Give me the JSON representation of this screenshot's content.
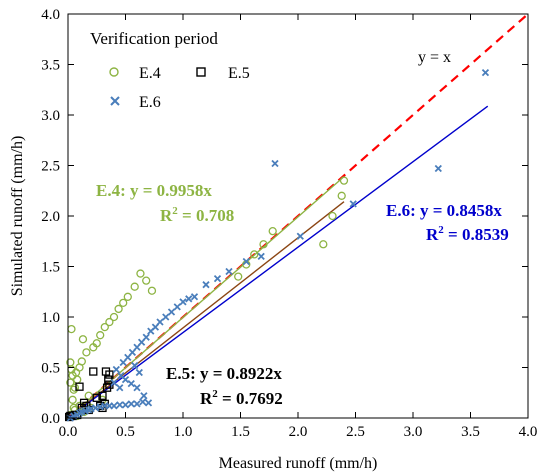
{
  "chart_data": {
    "type": "scatter",
    "title": "Verification period",
    "xlabel": "Measured runoff (mm/h)",
    "ylabel": "Simulated runoff (mm/h)",
    "xlim": [
      0,
      4.0
    ],
    "ylim": [
      0,
      4.0
    ],
    "xticks": [
      "0.0",
      "0.5",
      "1.0",
      "1.5",
      "2.0",
      "2.5",
      "3.0",
      "3.5",
      "4.0"
    ],
    "yticks": [
      "0.0",
      "0.5",
      "1.0",
      "1.5",
      "2.0",
      "2.5",
      "3.0",
      "3.5",
      "4.0"
    ],
    "grid": false,
    "legend_position": "top-left",
    "series": [
      {
        "name": "E.4",
        "marker": "circle",
        "color": "#8db443",
        "points": [
          [
            0.02,
            0.03
          ],
          [
            0.02,
            0.35
          ],
          [
            0.02,
            0.55
          ],
          [
            0.03,
            0.88
          ],
          [
            0.03,
            0.48
          ],
          [
            0.04,
            0.42
          ],
          [
            0.04,
            0.18
          ],
          [
            0.05,
            0.1
          ],
          [
            0.05,
            0.28
          ],
          [
            0.06,
            0.08
          ],
          [
            0.06,
            0.3
          ],
          [
            0.07,
            0.45
          ],
          [
            0.08,
            0.38
          ],
          [
            0.08,
            0.02
          ],
          [
            0.1,
            0.5
          ],
          [
            0.12,
            0.56
          ],
          [
            0.13,
            0.78
          ],
          [
            0.16,
            0.65
          ],
          [
            0.22,
            0.7
          ],
          [
            0.25,
            0.74
          ],
          [
            0.28,
            0.82
          ],
          [
            0.32,
            0.9
          ],
          [
            0.36,
            0.95
          ],
          [
            0.4,
            1.0
          ],
          [
            0.44,
            1.08
          ],
          [
            0.48,
            1.14
          ],
          [
            0.52,
            1.2
          ],
          [
            0.58,
            1.3
          ],
          [
            0.63,
            1.43
          ],
          [
            0.68,
            1.36
          ],
          [
            0.73,
            1.26
          ],
          [
            1.48,
            1.4
          ],
          [
            1.55,
            1.52
          ],
          [
            1.62,
            1.62
          ],
          [
            1.7,
            1.72
          ],
          [
            1.78,
            1.85
          ],
          [
            2.22,
            1.72
          ],
          [
            2.3,
            2.0
          ],
          [
            2.38,
            2.2
          ],
          [
            2.4,
            2.35
          ],
          [
            0.1,
            0.12
          ],
          [
            0.14,
            0.06
          ],
          [
            0.2,
            0.1
          ],
          [
            0.3,
            0.18
          ],
          [
            0.18,
            0.22
          ]
        ]
      },
      {
        "name": "E.5",
        "marker": "square",
        "color": "#000000",
        "points": [
          [
            0.01,
            0.01
          ],
          [
            0.02,
            0.02
          ],
          [
            0.04,
            0.02
          ],
          [
            0.06,
            0.03
          ],
          [
            0.08,
            0.03
          ],
          [
            0.1,
            0.31
          ],
          [
            0.12,
            0.1
          ],
          [
            0.14,
            0.15
          ],
          [
            0.16,
            0.12
          ],
          [
            0.18,
            0.08
          ],
          [
            0.22,
            0.46
          ],
          [
            0.25,
            0.2
          ],
          [
            0.28,
            0.12
          ],
          [
            0.3,
            0.22
          ],
          [
            0.33,
            0.46
          ],
          [
            0.34,
            0.3
          ],
          [
            0.35,
            0.38
          ],
          [
            0.36,
            0.33
          ],
          [
            0.36,
            0.43
          ],
          [
            0.3,
            0.1
          ],
          [
            0.32,
            0.14
          ]
        ]
      },
      {
        "name": "E.6",
        "marker": "x",
        "color": "#4a7ebb",
        "points": [
          [
            0.02,
            0.0
          ],
          [
            0.05,
            0.02
          ],
          [
            0.08,
            0.03
          ],
          [
            0.1,
            0.05
          ],
          [
            0.12,
            0.06
          ],
          [
            0.15,
            0.07
          ],
          [
            0.18,
            0.08
          ],
          [
            0.2,
            0.09
          ],
          [
            0.24,
            0.1
          ],
          [
            0.28,
            0.11
          ],
          [
            0.32,
            0.12
          ],
          [
            0.36,
            0.12
          ],
          [
            0.4,
            0.12
          ],
          [
            0.45,
            0.13
          ],
          [
            0.5,
            0.13
          ],
          [
            0.55,
            0.14
          ],
          [
            0.6,
            0.14
          ],
          [
            0.65,
            0.16
          ],
          [
            0.7,
            0.15
          ],
          [
            0.66,
            0.22
          ],
          [
            0.6,
            0.3
          ],
          [
            0.55,
            0.34
          ],
          [
            0.5,
            0.38
          ],
          [
            0.46,
            0.42
          ],
          [
            0.42,
            0.48
          ],
          [
            0.45,
            0.3
          ],
          [
            0.4,
            0.35
          ],
          [
            0.48,
            0.55
          ],
          [
            0.52,
            0.6
          ],
          [
            0.56,
            0.65
          ],
          [
            0.6,
            0.7
          ],
          [
            0.64,
            0.75
          ],
          [
            0.68,
            0.8
          ],
          [
            0.72,
            0.86
          ],
          [
            0.76,
            0.9
          ],
          [
            0.8,
            0.95
          ],
          [
            0.85,
            1.0
          ],
          [
            0.9,
            1.05
          ],
          [
            0.95,
            1.1
          ],
          [
            1.0,
            1.15
          ],
          [
            1.05,
            1.18
          ],
          [
            1.1,
            1.2
          ],
          [
            1.2,
            1.32
          ],
          [
            1.3,
            1.38
          ],
          [
            1.4,
            1.45
          ],
          [
            1.55,
            1.55
          ],
          [
            1.68,
            1.6
          ],
          [
            1.8,
            2.52
          ],
          [
            2.02,
            1.8
          ],
          [
            2.48,
            2.12
          ],
          [
            3.22,
            2.47
          ],
          [
            3.63,
            3.42
          ],
          [
            0.62,
            0.45
          ],
          [
            0.58,
            0.52
          ]
        ]
      }
    ],
    "lines": [
      {
        "name": "y = x",
        "slope": 1.0,
        "x_range": [
          0,
          4.0
        ],
        "style": "dashed",
        "color": "#ff0000"
      },
      {
        "name": "E.4",
        "slope": 0.9958,
        "x_range": [
          0,
          2.4
        ],
        "style": "solid",
        "color": "#8db443"
      },
      {
        "name": "E.5",
        "slope": 0.8922,
        "x_range": [
          0,
          2.4
        ],
        "style": "solid",
        "color": "#8b4513"
      },
      {
        "name": "E.6",
        "slope": 0.8458,
        "x_range": [
          0,
          3.65
        ],
        "style": "solid",
        "color": "#0000cc"
      }
    ],
    "annotations": {
      "yx": "y = x",
      "e4_eq": "E.4:  y = 0.9958x",
      "e4_r2_label": "R",
      "e4_r2_sup": "2",
      "e4_r2_value": " = 0.708",
      "e5_eq": "E.5: y = 0.8922x",
      "e5_r2_label": "R",
      "e5_r2_sup": "2",
      "e5_r2_value": " = 0.7692",
      "e6_eq": "E.6: y = 0.8458x",
      "e6_r2_label": "R",
      "e6_r2_sup": "2",
      "e6_r2_value": " = 0.8539"
    }
  }
}
